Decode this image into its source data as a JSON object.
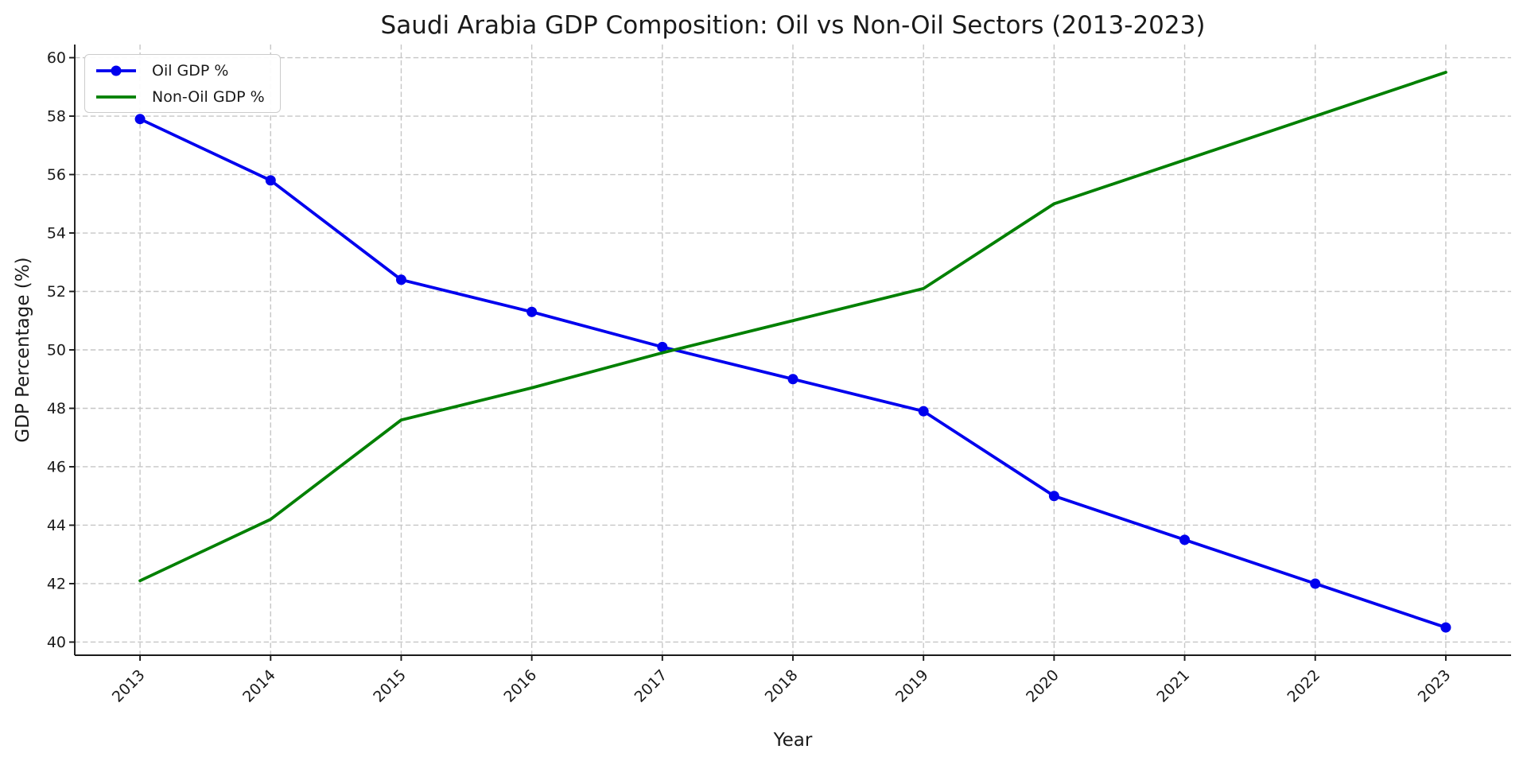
{
  "title": "Saudi Arabia GDP Composition: Oil vs Non-Oil Sectors (2013-2023)",
  "colors": {
    "oil_line": "#0000ee",
    "non_oil_line": "#008000",
    "grid": "#c6c6c6",
    "axis": "#1a1a1a",
    "tick_text": "#1a1a1a",
    "legend_border": "#cccccc"
  },
  "legend": {
    "position": "upper left",
    "items": [
      {
        "label": "Oil GDP %",
        "marker": "circle",
        "color": "#0000ee"
      },
      {
        "label": "Non-Oil GDP %",
        "marker": "none",
        "color": "#008000"
      }
    ]
  },
  "chart_data": {
    "type": "line",
    "title": "Saudi Arabia GDP Composition: Oil vs Non-Oil Sectors (2013-2023)",
    "xlabel": "Year",
    "ylabel": "GDP Percentage (%)",
    "x": [
      2013,
      2014,
      2015,
      2016,
      2017,
      2018,
      2019,
      2020,
      2021,
      2022,
      2023
    ],
    "series": [
      {
        "name": "Oil GDP %",
        "color": "#0000ee",
        "marker": "circle",
        "line_width": 3.8,
        "marker_radius": 6.5,
        "values": [
          57.9,
          55.8,
          52.4,
          51.3,
          50.1,
          49.0,
          47.9,
          45.0,
          43.5,
          42.0,
          40.5
        ]
      },
      {
        "name": "Non-Oil GDP %",
        "color": "#008000",
        "marker": "none",
        "line_width": 3.8,
        "marker_radius": 0,
        "values": [
          42.1,
          44.2,
          47.6,
          48.7,
          49.9,
          51.0,
          52.1,
          55.0,
          56.5,
          58.0,
          59.5
        ]
      }
    ],
    "xticks": [
      2013,
      2014,
      2015,
      2016,
      2017,
      2018,
      2019,
      2020,
      2021,
      2022,
      2023
    ],
    "yticks": [
      40,
      42,
      44,
      46,
      48,
      50,
      52,
      54,
      56,
      58,
      60
    ],
    "xlim": [
      2012.5,
      2023.5
    ],
    "ylim": [
      39.55,
      60.45
    ],
    "grid": true,
    "grid_style": "dashed",
    "x_tick_rotation": 45,
    "legend_position": "upper left"
  }
}
